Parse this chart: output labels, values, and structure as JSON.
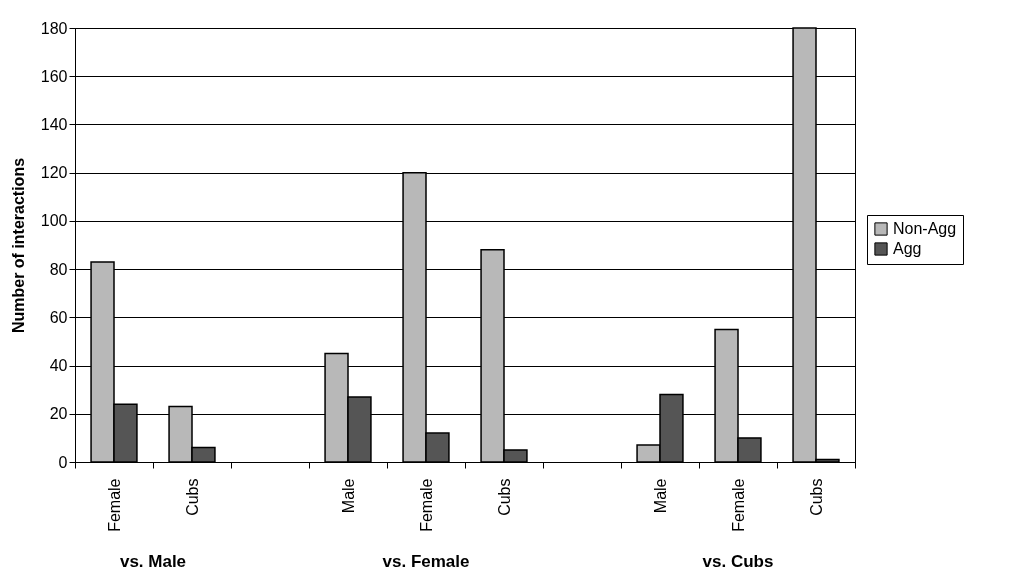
{
  "chart_data": {
    "type": "bar",
    "ylabel": "Number of interactions",
    "categories": [
      "Female",
      "Cubs",
      null,
      "Male",
      "Female",
      "Cubs",
      null,
      "Male",
      "Female",
      "Cubs"
    ],
    "series": [
      {
        "name": "Non-Agg",
        "color": "#b8b8b8",
        "values": [
          83,
          23,
          null,
          45,
          120,
          88,
          null,
          7,
          55,
          180
        ]
      },
      {
        "name": "Agg",
        "color": "#555555",
        "values": [
          24,
          6,
          null,
          27,
          12,
          5,
          null,
          28,
          10,
          1
        ]
      }
    ],
    "ylim": [
      0,
      180
    ],
    "yticks": [
      0,
      20,
      40,
      60,
      80,
      100,
      120,
      140,
      160,
      180
    ],
    "grid": "y",
    "legend": "right",
    "annotations": [
      "vs. Male",
      "vs. Female",
      "vs. Cubs"
    ]
  }
}
